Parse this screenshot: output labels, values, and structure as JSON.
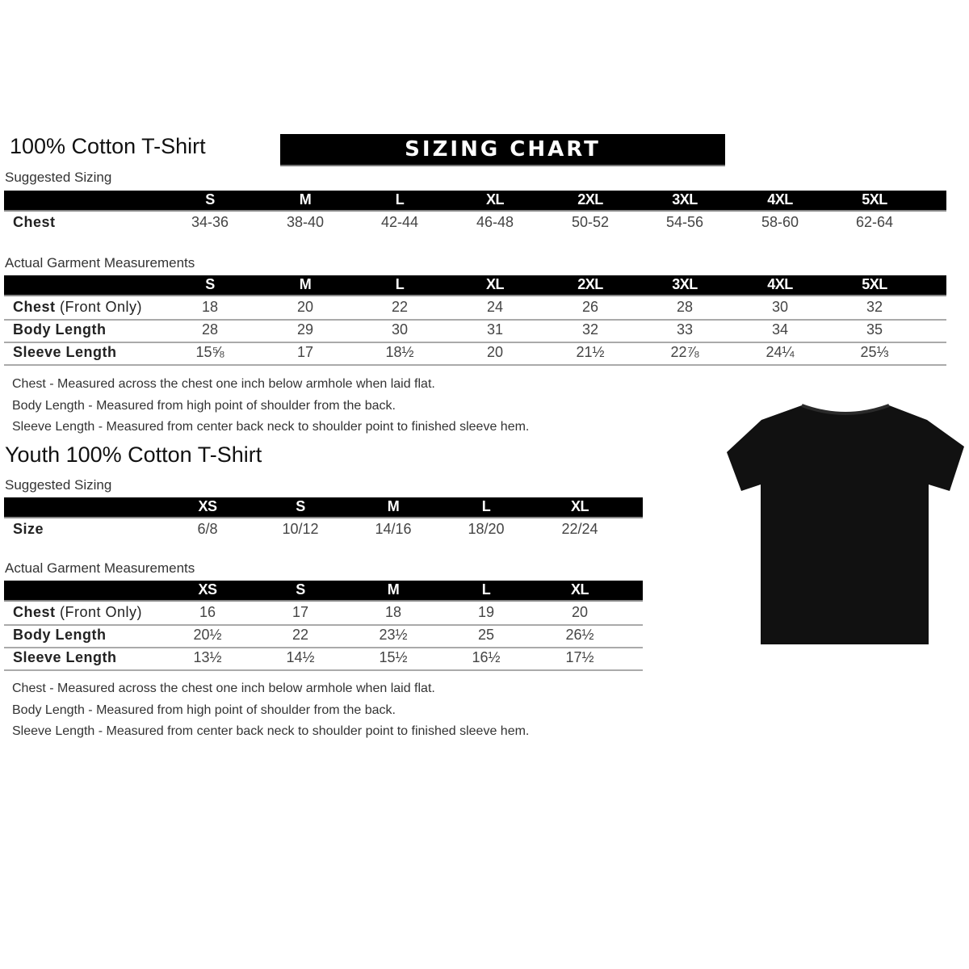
{
  "adult": {
    "title": "100% Cotton T-Shirt",
    "banner": "SIZING CHART",
    "suggested_label": "Suggested Sizing",
    "sizes": [
      "S",
      "M",
      "L",
      "XL",
      "2XL",
      "3XL",
      "4XL",
      "5XL"
    ],
    "suggested_rows": [
      {
        "label": "Chest",
        "values": [
          "34-36",
          "38-40",
          "42-44",
          "46-48",
          "50-52",
          "54-56",
          "58-60",
          "62-64"
        ]
      }
    ],
    "actual_label": "Actual Garment Measurements",
    "actual_rows": [
      {
        "label": "Chest",
        "label_suffix": " (Front Only)",
        "values": [
          "18",
          "20",
          "22",
          "24",
          "26",
          "28",
          "30",
          "32"
        ]
      },
      {
        "label": "Body Length",
        "label_suffix": "",
        "values": [
          "28",
          "29",
          "30",
          "31",
          "32",
          "33",
          "34",
          "35"
        ]
      },
      {
        "label": "Sleeve Length",
        "label_suffix": "",
        "values": [
          "15⅝",
          "17",
          "18½",
          "20",
          "21½",
          "22⅞",
          "24¼",
          "25⅓"
        ]
      }
    ],
    "notes": [
      "Chest - Measured across the chest one inch below armhole when laid flat.",
      "Body Length - Measured from high point of shoulder from the back.",
      "Sleeve Length - Measured from center back neck to shoulder point to finished sleeve hem."
    ]
  },
  "youth": {
    "title": "Youth 100% Cotton T-Shirt",
    "suggested_label": "Suggested Sizing",
    "sizes": [
      "XS",
      "S",
      "M",
      "L",
      "XL"
    ],
    "suggested_rows": [
      {
        "label": "Size",
        "values": [
          "6/8",
          "10/12",
          "14/16",
          "18/20",
          "22/24"
        ]
      }
    ],
    "actual_label": "Actual Garment Measurements",
    "actual_rows": [
      {
        "label": "Chest",
        "label_suffix": " (Front Only)",
        "values": [
          "16",
          "17",
          "18",
          "19",
          "20"
        ]
      },
      {
        "label": "Body Length",
        "label_suffix": "",
        "values": [
          "20½",
          "22",
          "23½",
          "25",
          "26½"
        ]
      },
      {
        "label": "Sleeve Length",
        "label_suffix": "",
        "values": [
          "13½",
          "14½",
          "15½",
          "16½",
          "17½"
        ]
      }
    ],
    "notes": [
      "Chest - Measured across the chest one inch below armhole when laid flat.",
      "Body Length - Measured from high point of shoulder from the back.",
      "Sleeve Length - Measured from center back neck to shoulder point to finished sleeve hem."
    ]
  },
  "image": {
    "icon": "tshirt-icon",
    "color": "#111111"
  }
}
